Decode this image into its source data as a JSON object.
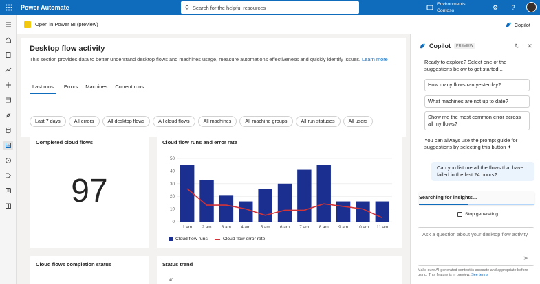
{
  "app": {
    "title": "Power Automate"
  },
  "search": {
    "placeholder": "Search for the helpful resources"
  },
  "environment": {
    "label": "Environments",
    "name": "Contoso"
  },
  "subbar": {
    "open_pbi_label": "Open in Power BI (preview)",
    "copilot_label": "Copilot"
  },
  "page": {
    "title": "Desktop flow activity",
    "description": "This section provides data to better understand desktop flows and machines usage, measure automations effectiveness and quickly identify issues.",
    "learn_more": "Learn more"
  },
  "tabs": [
    "Last runs",
    "Errors",
    "Machines",
    "Current runs"
  ],
  "filters": [
    "Last 7 days",
    "All errors",
    "All desktop flows",
    "All cloud flows",
    "All machines",
    "All machine groups",
    "All run statuses",
    "All users"
  ],
  "cards": {
    "completed": {
      "title": "Completed cloud flows",
      "value": "97"
    },
    "runs_chart": {
      "title": "Cloud flow runs and error rate"
    },
    "completion_status": {
      "title": "Cloud flows completion status"
    },
    "status_trend": {
      "title": "Status trend",
      "first_tick": "40"
    }
  },
  "chart_data": {
    "type": "bar",
    "title": "Cloud flow runs and error rate",
    "categories": [
      "1 am",
      "2 am",
      "3 am",
      "4 am",
      "5 am",
      "6 am",
      "7 am",
      "8 am",
      "9 am",
      "10 am",
      "11 am"
    ],
    "series": [
      {
        "name": "Cloud flow runs",
        "type": "bar",
        "values": [
          45,
          33,
          21,
          16,
          26,
          30,
          41,
          45,
          16,
          16,
          16
        ]
      },
      {
        "name": "Cloud flow error rate",
        "type": "line",
        "values": [
          26,
          13,
          13,
          10,
          5,
          9,
          9,
          14,
          12,
          10,
          3
        ]
      }
    ],
    "ylim": [
      0,
      50
    ],
    "yticks": [
      "0",
      "10",
      "20",
      "30",
      "40",
      "50"
    ],
    "grid": true,
    "legend": "bottom-left",
    "colors": {
      "bar": "#1a2f8f",
      "line": "#d13438"
    }
  },
  "copilot": {
    "title": "Copilot",
    "badge": "PREVIEW",
    "intro": "Ready to explore? Select one of the suggestions below to get started...",
    "suggestions": [
      "How many flows ran yesterday?",
      "What machines are not up to date?",
      "Show me the most common error across all my flows?"
    ],
    "guide": "You can always use the prompt guide for suggestions by selecting this button",
    "user_message": "Can you list me all the flows that have failed in the last 24 hours?",
    "status": "Searching for insights...",
    "status_progress": 0.42,
    "stop_label": "Stop generating",
    "input_placeholder": "Ask a question about your desktop flow activity.",
    "footer_text": "Make sure AI-generated content is accurate and appropriate before using. This feature is in preview.",
    "footer_link": "See terms"
  },
  "accent": "#0f6cbd"
}
